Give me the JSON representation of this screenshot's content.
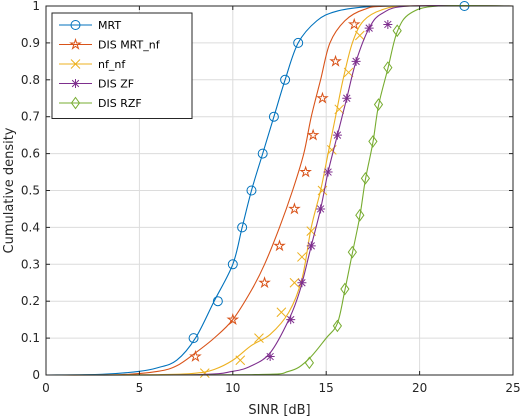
{
  "chart_data": {
    "type": "line",
    "xlabel": "SINR [dB]",
    "ylabel": "Cumulative density",
    "xlim": [
      0,
      25
    ],
    "ylim": [
      0,
      1
    ],
    "xticks": [
      "0",
      "5",
      "10",
      "15",
      "20",
      "25"
    ],
    "yticks": [
      "0",
      "0.1",
      "0.2",
      "0.3",
      "0.4",
      "0.5",
      "0.6",
      "0.7",
      "0.8",
      "0.9",
      "1"
    ],
    "grid": true,
    "legend_position": "top-left",
    "series": [
      {
        "name": "MRT",
        "color": "#0072BD",
        "marker": "circle",
        "curve": [
          [
            0,
            0
          ],
          [
            3,
            0.002
          ],
          [
            5,
            0.01
          ],
          [
            6,
            0.02
          ],
          [
            7,
            0.04
          ],
          [
            8,
            0.1
          ],
          [
            9,
            0.2
          ],
          [
            10,
            0.3
          ],
          [
            10.5,
            0.4
          ],
          [
            11,
            0.5
          ],
          [
            11.6,
            0.6
          ],
          [
            12.2,
            0.7
          ],
          [
            12.8,
            0.8
          ],
          [
            13.5,
            0.9
          ],
          [
            14.5,
            0.96
          ],
          [
            15.5,
            0.985
          ],
          [
            17,
            0.997
          ],
          [
            19,
            1
          ],
          [
            25,
            1
          ]
        ],
        "markers": [
          [
            7.9,
            0.1
          ],
          [
            9.2,
            0.2
          ],
          [
            10,
            0.3
          ],
          [
            10.5,
            0.4
          ],
          [
            11,
            0.5
          ],
          [
            11.6,
            0.6
          ],
          [
            12.2,
            0.7
          ],
          [
            12.8,
            0.8
          ],
          [
            13.5,
            0.9
          ],
          [
            22.4,
            1.0
          ]
        ]
      },
      {
        "name": "DIS MRT_nf",
        "color": "#D95319",
        "marker": "star",
        "curve": [
          [
            0,
            0
          ],
          [
            4,
            0.001
          ],
          [
            6,
            0.01
          ],
          [
            7,
            0.025
          ],
          [
            8,
            0.06
          ],
          [
            9,
            0.1
          ],
          [
            10,
            0.15
          ],
          [
            11,
            0.23
          ],
          [
            11.7,
            0.3
          ],
          [
            12.5,
            0.4
          ],
          [
            13.2,
            0.5
          ],
          [
            13.8,
            0.6
          ],
          [
            14.2,
            0.7
          ],
          [
            14.7,
            0.8
          ],
          [
            15.2,
            0.9
          ],
          [
            16,
            0.96
          ],
          [
            17,
            0.99
          ],
          [
            18.5,
            1
          ],
          [
            25,
            1
          ]
        ],
        "markers": [
          [
            8,
            0.05
          ],
          [
            10,
            0.15
          ],
          [
            11.7,
            0.25
          ],
          [
            12.5,
            0.35
          ],
          [
            13.3,
            0.45
          ],
          [
            13.9,
            0.55
          ],
          [
            14.3,
            0.65
          ],
          [
            14.8,
            0.75
          ],
          [
            15.5,
            0.85
          ],
          [
            16.5,
            0.95
          ]
        ]
      },
      {
        "name": "nf_nf",
        "color": "#EDB120",
        "marker": "x",
        "curve": [
          [
            0,
            0
          ],
          [
            6,
            0.001
          ],
          [
            8,
            0.005
          ],
          [
            9,
            0.015
          ],
          [
            10,
            0.04
          ],
          [
            11,
            0.08
          ],
          [
            12,
            0.11
          ],
          [
            13,
            0.17
          ],
          [
            13.7,
            0.26
          ],
          [
            14.2,
            0.4
          ],
          [
            14.7,
            0.5
          ],
          [
            15.1,
            0.6
          ],
          [
            15.5,
            0.7
          ],
          [
            15.9,
            0.8
          ],
          [
            16.4,
            0.9
          ],
          [
            17,
            0.96
          ],
          [
            18,
            0.99
          ],
          [
            19.5,
            1
          ],
          [
            25,
            1
          ]
        ],
        "markers": [
          [
            8.5,
            0.005
          ],
          [
            10.4,
            0.04
          ],
          [
            11.4,
            0.1
          ],
          [
            12.6,
            0.17
          ],
          [
            13.3,
            0.25
          ],
          [
            13.7,
            0.32
          ],
          [
            14.2,
            0.39
          ],
          [
            14.8,
            0.5
          ],
          [
            15.3,
            0.61
          ],
          [
            15.7,
            0.72
          ],
          [
            16.2,
            0.82
          ],
          [
            16.8,
            0.92
          ]
        ]
      },
      {
        "name": "DIS ZF",
        "color": "#7E2F8E",
        "marker": "asterisk",
        "curve": [
          [
            0,
            0
          ],
          [
            8,
            0.001
          ],
          [
            10,
            0.01
          ],
          [
            11,
            0.025
          ],
          [
            12,
            0.06
          ],
          [
            13,
            0.15
          ],
          [
            13.6,
            0.23
          ],
          [
            14.2,
            0.35
          ],
          [
            14.7,
            0.45
          ],
          [
            15.1,
            0.55
          ],
          [
            15.6,
            0.65
          ],
          [
            16.1,
            0.75
          ],
          [
            16.6,
            0.85
          ],
          [
            17.3,
            0.94
          ],
          [
            18,
            0.98
          ],
          [
            19.5,
            1
          ],
          [
            25,
            1
          ]
        ],
        "markers": [
          [
            12,
            0.05
          ],
          [
            13.1,
            0.15
          ],
          [
            13.7,
            0.25
          ],
          [
            14.2,
            0.35
          ],
          [
            14.7,
            0.45
          ],
          [
            15.1,
            0.55
          ],
          [
            15.6,
            0.65
          ],
          [
            16.1,
            0.75
          ],
          [
            16.6,
            0.85
          ],
          [
            17.3,
            0.94
          ],
          [
            18.3,
            0.95
          ]
        ]
      },
      {
        "name": "DIS RZF",
        "color": "#77AC30",
        "marker": "diamond",
        "curve": [
          [
            0,
            0
          ],
          [
            11,
            0.001
          ],
          [
            13,
            0.01
          ],
          [
            14,
            0.04
          ],
          [
            15,
            0.1
          ],
          [
            15.6,
            0.14
          ],
          [
            16,
            0.23
          ],
          [
            16.4,
            0.33
          ],
          [
            16.8,
            0.43
          ],
          [
            17.1,
            0.53
          ],
          [
            17.5,
            0.63
          ],
          [
            17.8,
            0.73
          ],
          [
            18.3,
            0.83
          ],
          [
            18.8,
            0.93
          ],
          [
            19.5,
            0.98
          ],
          [
            21,
            1
          ],
          [
            25,
            1
          ]
        ],
        "markers": [
          [
            14.1,
            0.033
          ],
          [
            15.6,
            0.133
          ],
          [
            16,
            0.233
          ],
          [
            16.4,
            0.333
          ],
          [
            16.8,
            0.433
          ],
          [
            17.1,
            0.533
          ],
          [
            17.5,
            0.633
          ],
          [
            17.8,
            0.733
          ],
          [
            18.3,
            0.833
          ],
          [
            18.8,
            0.933
          ]
        ]
      }
    ]
  }
}
